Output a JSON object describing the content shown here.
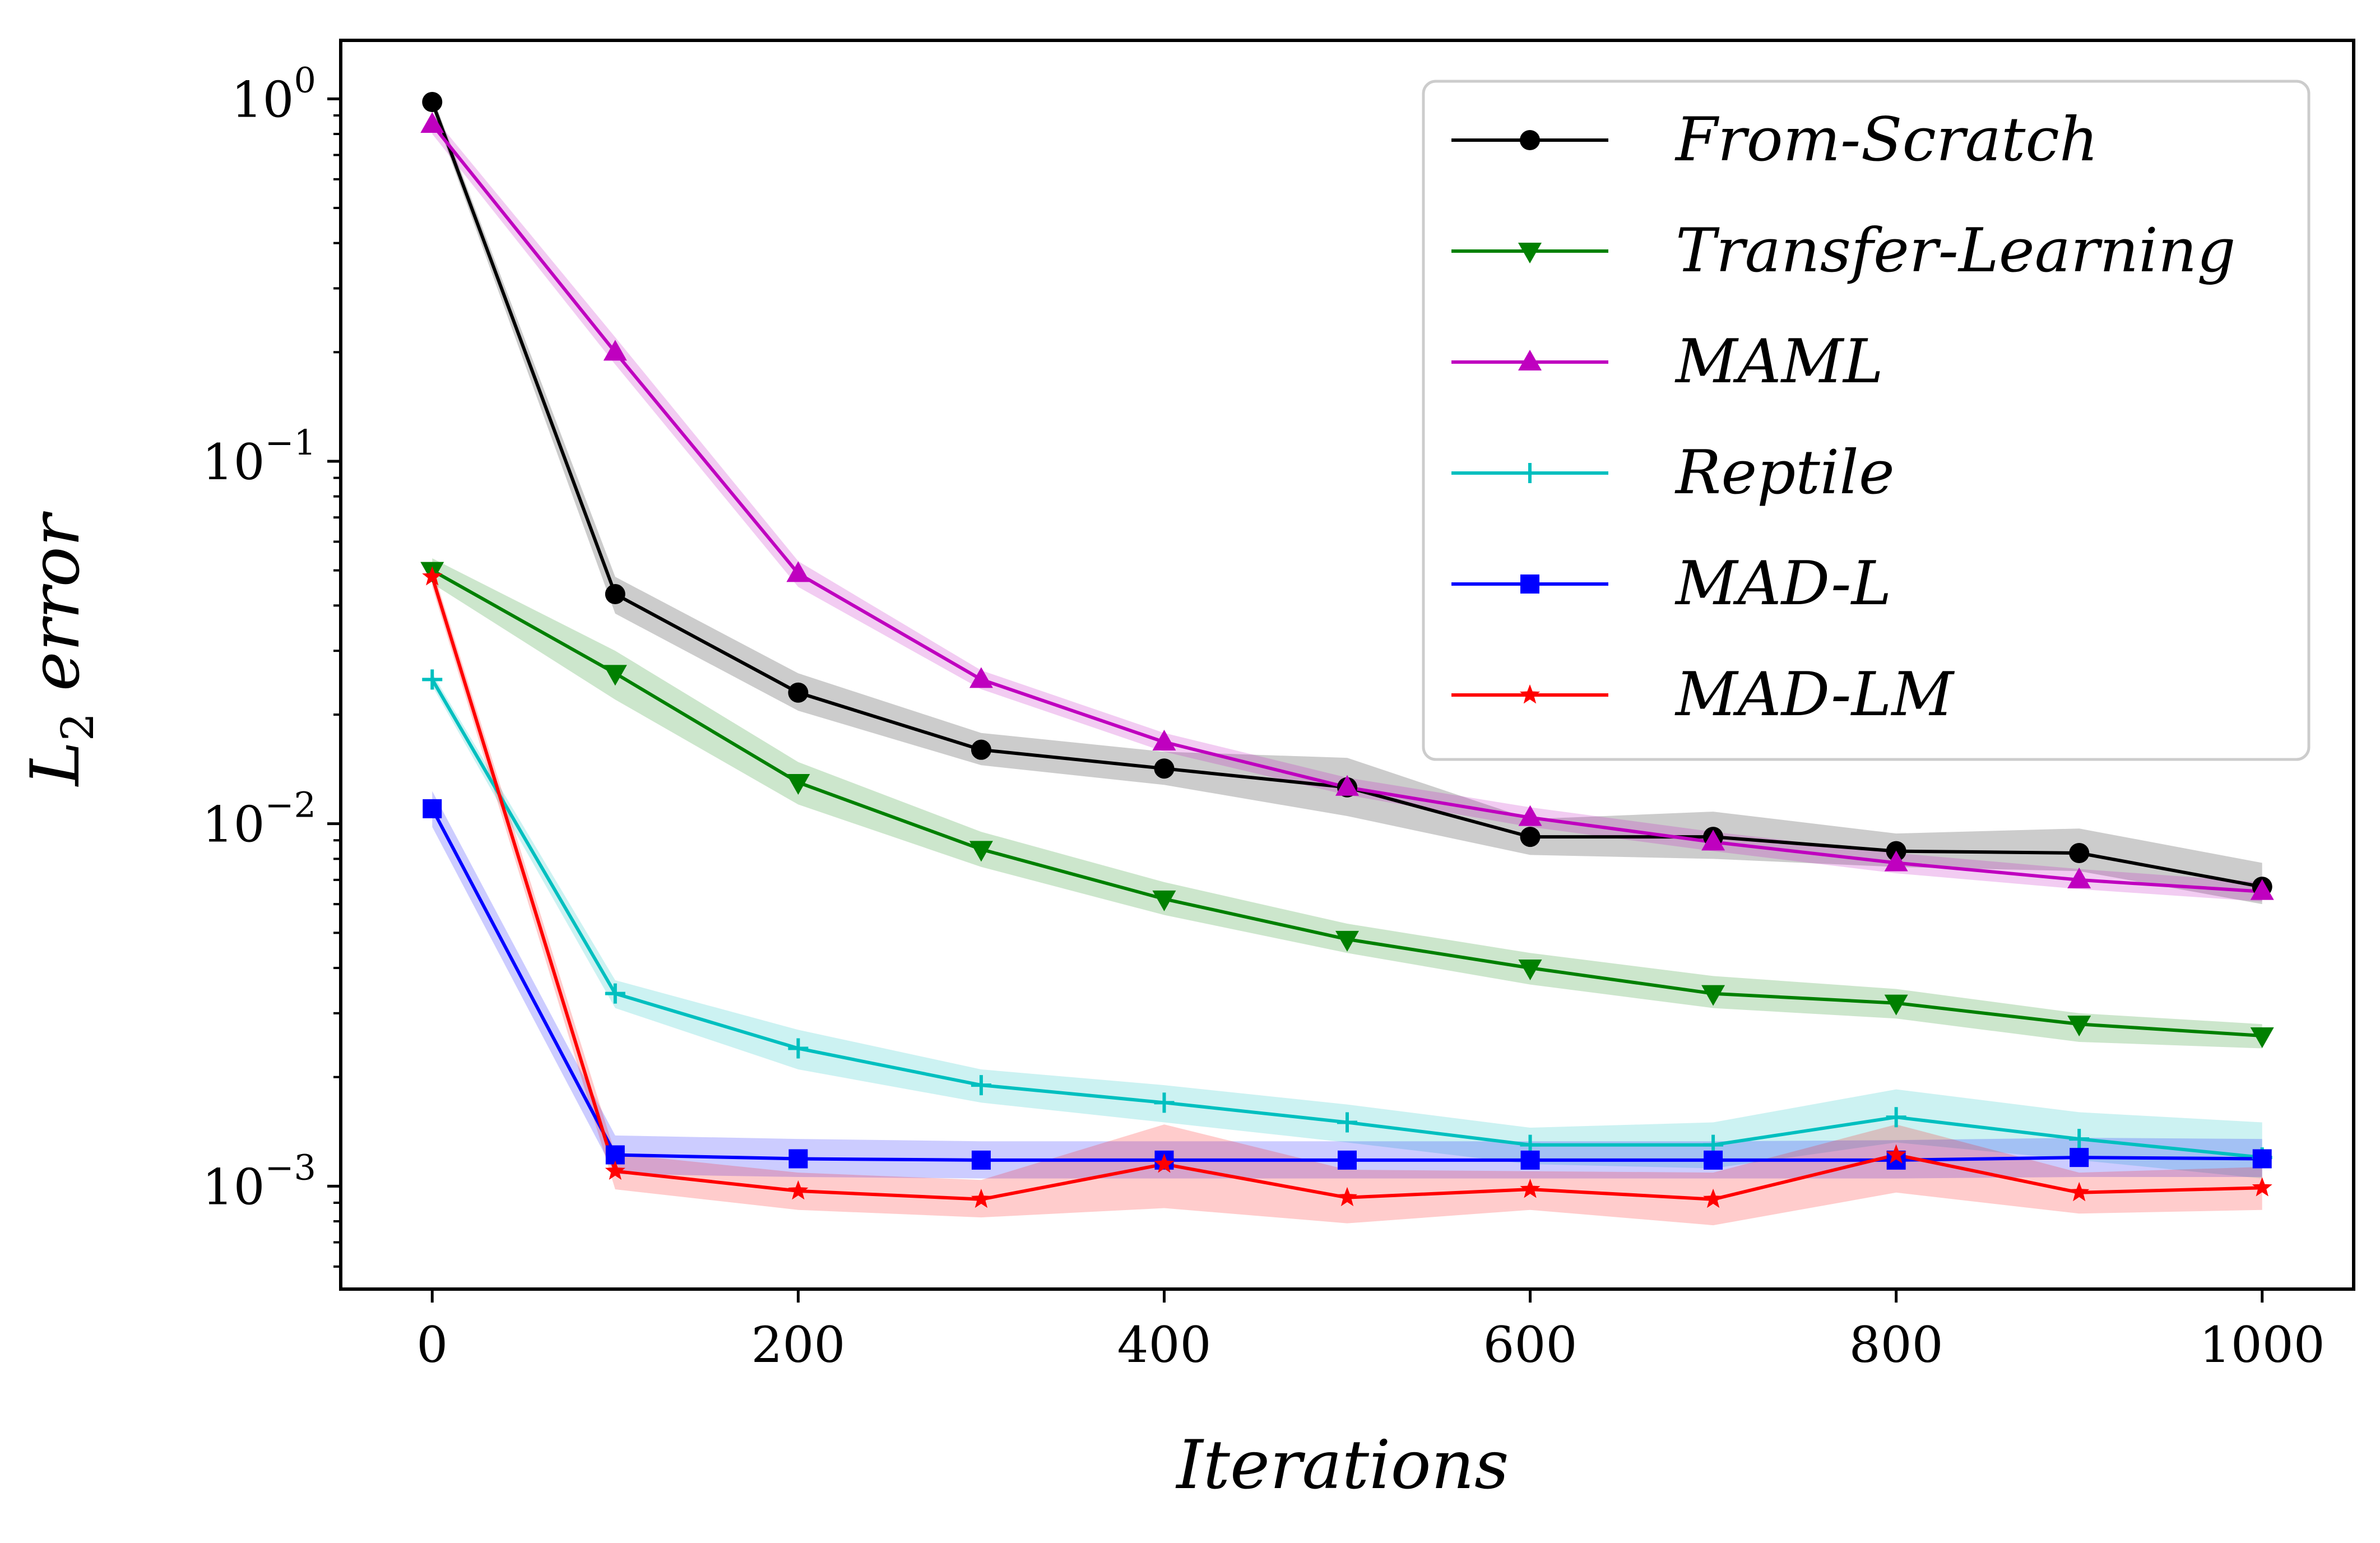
{
  "chart_data": {
    "type": "line",
    "title": "",
    "xlabel": "Iterations",
    "ylabel": "error",
    "ylabel_base": "L",
    "ylabel_sub": "2",
    "xscale": "linear",
    "yscale": "log",
    "xlim": [
      -50,
      1050
    ],
    "ylim": [
      0.00052,
      1.45
    ],
    "xticks": [
      0,
      200,
      400,
      600,
      800,
      1000
    ],
    "xtick_labels": [
      "0",
      "200",
      "400",
      "600",
      "800",
      "1000"
    ],
    "yticks": [
      0.001,
      0.01,
      0.1,
      1
    ],
    "ytick_labels": [
      {
        "base": "10",
        "exp": "−3"
      },
      {
        "base": "10",
        "exp": "−2"
      },
      {
        "base": "10",
        "exp": "−1"
      },
      {
        "base": "10",
        "exp": "0"
      }
    ],
    "grid": false,
    "legend_position": "top-right",
    "x": [
      0,
      100,
      200,
      300,
      400,
      500,
      600,
      700,
      800,
      900,
      1000
    ],
    "series": [
      {
        "name": "From-Scratch",
        "color": "#000000",
        "marker": "circle",
        "values": [
          0.98,
          0.043,
          0.023,
          0.016,
          0.0142,
          0.0126,
          0.0092,
          0.0092,
          0.0084,
          0.0083,
          0.0067
        ],
        "lower": [
          0.94,
          0.038,
          0.0205,
          0.0145,
          0.0128,
          0.0105,
          0.0082,
          0.008,
          0.0076,
          0.0074,
          0.006
        ],
        "upper": [
          1.02,
          0.048,
          0.026,
          0.0178,
          0.0158,
          0.0152,
          0.0103,
          0.0108,
          0.0094,
          0.0097,
          0.0078
        ]
      },
      {
        "name": "Transfer-Learning",
        "color": "#008000",
        "marker": "triangle-down",
        "values": [
          0.05,
          0.026,
          0.013,
          0.0085,
          0.0062,
          0.0048,
          0.004,
          0.0034,
          0.0032,
          0.0028,
          0.0026
        ],
        "lower": [
          0.046,
          0.022,
          0.0113,
          0.0076,
          0.0056,
          0.0044,
          0.0036,
          0.0031,
          0.0029,
          0.0025,
          0.0024
        ],
        "upper": [
          0.054,
          0.03,
          0.0148,
          0.0095,
          0.0069,
          0.0053,
          0.0044,
          0.0038,
          0.0035,
          0.003,
          0.0028
        ]
      },
      {
        "name": "MAML",
        "color": "#bf00bf",
        "marker": "triangle-up",
        "values": [
          0.85,
          0.2,
          0.049,
          0.025,
          0.0168,
          0.0126,
          0.0104,
          0.0089,
          0.0078,
          0.007,
          0.0065
        ],
        "lower": [
          0.8,
          0.185,
          0.045,
          0.0235,
          0.0158,
          0.012,
          0.0098,
          0.0084,
          0.0073,
          0.0066,
          0.0061
        ],
        "upper": [
          0.9,
          0.22,
          0.053,
          0.0265,
          0.0178,
          0.0134,
          0.0111,
          0.0095,
          0.0083,
          0.0075,
          0.0069
        ]
      },
      {
        "name": "Reptile",
        "color": "#00bfbf",
        "marker": "plus",
        "values": [
          0.025,
          0.0034,
          0.0024,
          0.0019,
          0.0017,
          0.0015,
          0.0013,
          0.0013,
          0.00155,
          0.00135,
          0.0012
        ],
        "lower": [
          0.024,
          0.0031,
          0.0021,
          0.0017,
          0.0015,
          0.00132,
          0.00115,
          0.00112,
          0.00132,
          0.00118,
          0.00105
        ],
        "upper": [
          0.026,
          0.0037,
          0.0027,
          0.0021,
          0.0019,
          0.00168,
          0.00145,
          0.0015,
          0.00185,
          0.0016,
          0.0015
        ]
      },
      {
        "name": "MAD-L",
        "color": "#0000ff",
        "marker": "square",
        "values": [
          0.011,
          0.00122,
          0.00119,
          0.00118,
          0.00118,
          0.00118,
          0.00118,
          0.00118,
          0.00118,
          0.0012,
          0.00119
        ],
        "lower": [
          0.0098,
          0.00108,
          0.00106,
          0.00105,
          0.00105,
          0.00105,
          0.00105,
          0.00105,
          0.00105,
          0.00106,
          0.00106
        ],
        "upper": [
          0.0123,
          0.00138,
          0.00135,
          0.00133,
          0.00133,
          0.00133,
          0.00133,
          0.00133,
          0.00134,
          0.00136,
          0.00135
        ]
      },
      {
        "name": "MAD-LM",
        "color": "#ff0000",
        "marker": "star",
        "values": [
          0.048,
          0.0011,
          0.00097,
          0.00092,
          0.00115,
          0.00093,
          0.00098,
          0.00092,
          0.00122,
          0.00096,
          0.00099
        ],
        "lower": [
          0.045,
          0.00098,
          0.00086,
          0.00082,
          0.00087,
          0.00079,
          0.00086,
          0.00078,
          0.00096,
          0.00084,
          0.00086
        ],
        "upper": [
          0.051,
          0.00123,
          0.00109,
          0.00104,
          0.00148,
          0.00111,
          0.0011,
          0.00109,
          0.00148,
          0.00109,
          0.00113
        ]
      }
    ]
  }
}
